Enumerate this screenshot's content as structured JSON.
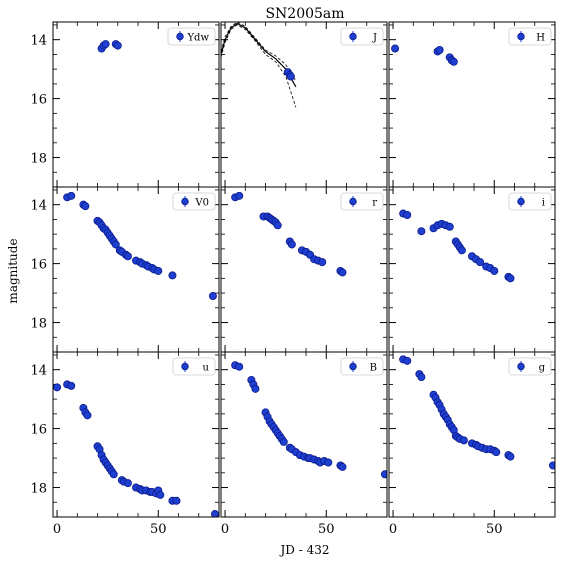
{
  "chart_data": {
    "type": "scatter",
    "title": "SN2005am",
    "xlabel": "JD - 432",
    "ylabel": "magnitude",
    "xlim": [
      -2,
      80
    ],
    "ylim": [
      19.0,
      13.4
    ],
    "inverted_y": true,
    "xticks": [
      "0",
      "50"
    ],
    "yticks": [
      "14",
      "16",
      "18"
    ],
    "marker_color": "#1f3fd1",
    "marker_edge": "#0a1a8a",
    "legend_position": "top-right",
    "panels": [
      {
        "name": "Ydw",
        "points": [
          [
            22,
            14.3
          ],
          [
            23,
            14.2
          ],
          [
            24,
            14.15
          ],
          [
            29,
            14.15
          ],
          [
            30,
            14.2
          ]
        ]
      },
      {
        "name": "J",
        "points": [
          [
            31,
            15.1
          ],
          [
            32,
            15.2
          ],
          [
            32.5,
            15.25
          ]
        ],
        "template": [
          [
            -2,
            14.5
          ],
          [
            0,
            14.0
          ],
          [
            3,
            13.6
          ],
          [
            6,
            13.45
          ],
          [
            10,
            13.6
          ],
          [
            15,
            14.0
          ],
          [
            20,
            14.4
          ],
          [
            25,
            14.65
          ],
          [
            30,
            15.0
          ],
          [
            35,
            15.6
          ]
        ],
        "template_band": {
          "upper": [
            [
              -2,
              14.4
            ],
            [
              0,
              13.9
            ],
            [
              3,
              13.55
            ],
            [
              6,
              13.4
            ],
            [
              10,
              13.55
            ],
            [
              15,
              13.95
            ],
            [
              20,
              14.35
            ],
            [
              25,
              14.55
            ],
            [
              30,
              14.85
            ],
            [
              35,
              15.4
            ]
          ],
          "lower": [
            [
              -2,
              14.6
            ],
            [
              0,
              14.1
            ],
            [
              3,
              13.65
            ],
            [
              6,
              13.5
            ],
            [
              10,
              13.65
            ],
            [
              15,
              14.05
            ],
            [
              20,
              14.5
            ],
            [
              25,
              14.75
            ],
            [
              30,
              15.25
            ],
            [
              35,
              16.3
            ]
          ]
        }
      },
      {
        "name": "H",
        "points": [
          [
            1,
            14.3
          ],
          [
            22,
            14.4
          ],
          [
            23,
            14.35
          ],
          [
            28,
            14.6
          ],
          [
            29,
            14.7
          ],
          [
            30,
            14.75
          ]
        ]
      },
      {
        "name": "V0",
        "points": [
          [
            5,
            13.75
          ],
          [
            7,
            13.7
          ],
          [
            13,
            14.0
          ],
          [
            14,
            14.05
          ],
          [
            20,
            14.55
          ],
          [
            21,
            14.6
          ],
          [
            22,
            14.7
          ],
          [
            23,
            14.8
          ],
          [
            24,
            14.85
          ],
          [
            25,
            14.95
          ],
          [
            26,
            15.05
          ],
          [
            27,
            15.15
          ],
          [
            28,
            15.25
          ],
          [
            29,
            15.35
          ],
          [
            31,
            15.55
          ],
          [
            32,
            15.6
          ],
          [
            34,
            15.7
          ],
          [
            35,
            15.75
          ],
          [
            39,
            15.9
          ],
          [
            41,
            15.95
          ],
          [
            42,
            16.0
          ],
          [
            44,
            16.05
          ],
          [
            45,
            16.1
          ],
          [
            47,
            16.15
          ],
          [
            48,
            16.2
          ],
          [
            50,
            16.25
          ],
          [
            57,
            16.4
          ],
          [
            77,
            17.1
          ]
        ]
      },
      {
        "name": "r",
        "points": [
          [
            5,
            13.75
          ],
          [
            7,
            13.7
          ],
          [
            19,
            14.4
          ],
          [
            21,
            14.4
          ],
          [
            22,
            14.45
          ],
          [
            23,
            14.5
          ],
          [
            24,
            14.55
          ],
          [
            25,
            14.6
          ],
          [
            26,
            14.7
          ],
          [
            32,
            15.25
          ],
          [
            33,
            15.35
          ],
          [
            38,
            15.55
          ],
          [
            40,
            15.6
          ],
          [
            42,
            15.7
          ],
          [
            44,
            15.85
          ],
          [
            46,
            15.9
          ],
          [
            48,
            15.95
          ],
          [
            57,
            16.25
          ],
          [
            58,
            16.3
          ]
        ]
      },
      {
        "name": "i",
        "points": [
          [
            5,
            14.3
          ],
          [
            7,
            14.35
          ],
          [
            14,
            14.9
          ],
          [
            20,
            14.8
          ],
          [
            22,
            14.7
          ],
          [
            24,
            14.65
          ],
          [
            26,
            14.7
          ],
          [
            28,
            14.75
          ],
          [
            31,
            15.25
          ],
          [
            32,
            15.35
          ],
          [
            33,
            15.45
          ],
          [
            34,
            15.55
          ],
          [
            39,
            15.75
          ],
          [
            41,
            15.85
          ],
          [
            43,
            15.95
          ],
          [
            46,
            16.1
          ],
          [
            48,
            16.15
          ],
          [
            50,
            16.25
          ],
          [
            57,
            16.45
          ],
          [
            58,
            16.5
          ]
        ]
      },
      {
        "name": "u",
        "points": [
          [
            0,
            14.6
          ],
          [
            5,
            14.5
          ],
          [
            7,
            14.55
          ],
          [
            13,
            15.3
          ],
          [
            14,
            15.45
          ],
          [
            15,
            15.55
          ],
          [
            20,
            16.6
          ],
          [
            21,
            16.7
          ],
          [
            22,
            16.9
          ],
          [
            23,
            17.05
          ],
          [
            24,
            17.15
          ],
          [
            25,
            17.25
          ],
          [
            26,
            17.35
          ],
          [
            27,
            17.45
          ],
          [
            28,
            17.55
          ],
          [
            32,
            17.75
          ],
          [
            33,
            17.8
          ],
          [
            35,
            17.85
          ],
          [
            39,
            18.0
          ],
          [
            41,
            18.05
          ],
          [
            42,
            18.1
          ],
          [
            44,
            18.1
          ],
          [
            46,
            18.15
          ],
          [
            47,
            18.15
          ],
          [
            49,
            18.2
          ],
          [
            50,
            18.1
          ],
          [
            51,
            18.25
          ],
          [
            57,
            18.45
          ],
          [
            59,
            18.45
          ],
          [
            78,
            18.9
          ]
        ]
      },
      {
        "name": "B",
        "points": [
          [
            5,
            13.85
          ],
          [
            7,
            13.9
          ],
          [
            13,
            14.35
          ],
          [
            14,
            14.5
          ],
          [
            15,
            14.65
          ],
          [
            20,
            15.45
          ],
          [
            21,
            15.6
          ],
          [
            22,
            15.75
          ],
          [
            23,
            15.85
          ],
          [
            24,
            15.95
          ],
          [
            25,
            16.05
          ],
          [
            26,
            16.15
          ],
          [
            27,
            16.25
          ],
          [
            28,
            16.35
          ],
          [
            29,
            16.45
          ],
          [
            32,
            16.65
          ],
          [
            33,
            16.7
          ],
          [
            35,
            16.8
          ],
          [
            37,
            16.9
          ],
          [
            39,
            16.95
          ],
          [
            41,
            17.0
          ],
          [
            42,
            17.0
          ],
          [
            44,
            17.05
          ],
          [
            46,
            17.1
          ],
          [
            47,
            17.15
          ],
          [
            49,
            17.1
          ],
          [
            51,
            17.15
          ],
          [
            57,
            17.25
          ],
          [
            58,
            17.3
          ],
          [
            79,
            17.55
          ]
        ]
      },
      {
        "name": "g",
        "points": [
          [
            5,
            13.65
          ],
          [
            7,
            13.7
          ],
          [
            13,
            14.15
          ],
          [
            14,
            14.25
          ],
          [
            20,
            14.85
          ],
          [
            21,
            14.95
          ],
          [
            22,
            15.1
          ],
          [
            23,
            15.2
          ],
          [
            24,
            15.35
          ],
          [
            25,
            15.5
          ],
          [
            26,
            15.6
          ],
          [
            27,
            15.7
          ],
          [
            28,
            15.85
          ],
          [
            29,
            15.95
          ],
          [
            30,
            16.05
          ],
          [
            31,
            16.25
          ],
          [
            32,
            16.3
          ],
          [
            33,
            16.35
          ],
          [
            35,
            16.4
          ],
          [
            39,
            16.5
          ],
          [
            41,
            16.55
          ],
          [
            42,
            16.6
          ],
          [
            44,
            16.65
          ],
          [
            46,
            16.7
          ],
          [
            48,
            16.7
          ],
          [
            50,
            16.75
          ],
          [
            51,
            16.8
          ],
          [
            57,
            16.9
          ],
          [
            58,
            16.95
          ],
          [
            79,
            17.25
          ]
        ]
      }
    ]
  }
}
